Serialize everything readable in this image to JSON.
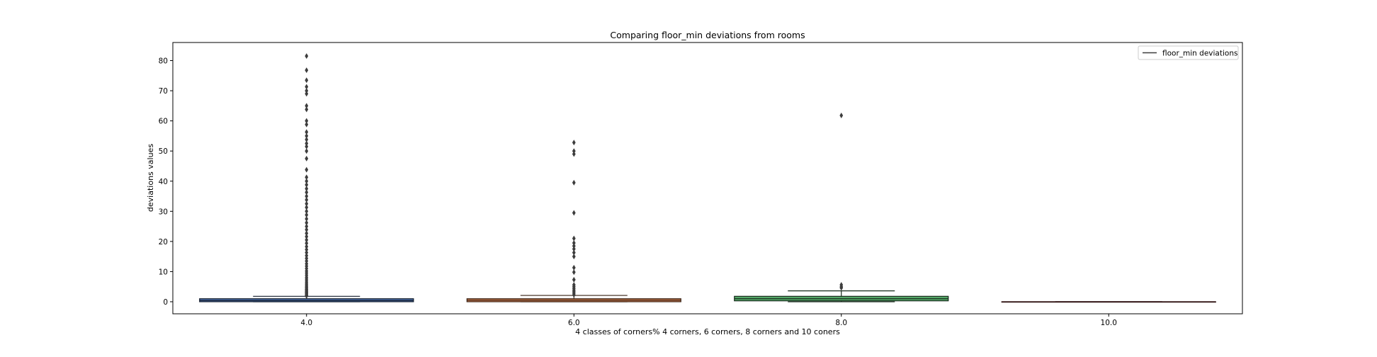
{
  "chart_data": {
    "type": "box",
    "title": "Comparing floor_min deviations from rooms",
    "xlabel": "4 classes of corners% 4 corners, 6 corners, 8 corners and 10 coners",
    "ylabel": "deviations values",
    "ylim": [
      -4,
      86
    ],
    "yticks": [
      0,
      10,
      20,
      30,
      40,
      50,
      60,
      70,
      80
    ],
    "categories": [
      "4.0",
      "6.0",
      "8.0",
      "10.0"
    ],
    "legend": {
      "position": "top-right",
      "label": "floor_min deviations"
    },
    "colors": [
      "#4c72b0",
      "#dd8452",
      "#55a868",
      "#c44e52"
    ],
    "grid": false,
    "boxes": [
      {
        "category": "4.0",
        "q1": 0.0,
        "median": 0.4,
        "q3": 1.0,
        "whisker_low": 0.0,
        "whisker_high": 1.8,
        "outliers": [
          1.9,
          2.1,
          2.3,
          2.6,
          2.9,
          3.2,
          3.5,
          3.8,
          4.1,
          4.5,
          4.9,
          5.3,
          5.8,
          6.3,
          6.9,
          7.5,
          8.1,
          8.8,
          9.5,
          10.2,
          11.0,
          11.8,
          12.6,
          13.5,
          14.4,
          15.3,
          16.3,
          17.3,
          18.3,
          19.4,
          20.5,
          21.6,
          22.7,
          23.9,
          25.0,
          26.2,
          27.5,
          28.8,
          30.0,
          31.3,
          32.5,
          33.8,
          35.0,
          36.3,
          37.5,
          38.8,
          40.0,
          41.3,
          43.8,
          47.5,
          50.0,
          51.5,
          52.5,
          53.8,
          55.0,
          56.3,
          58.8,
          60.0,
          63.8,
          65.0,
          69.0,
          70.0,
          71.3,
          73.5,
          76.8,
          81.5
        ]
      },
      {
        "category": "6.0",
        "q1": 0.0,
        "median": 0.5,
        "q3": 1.0,
        "whisker_low": 0.0,
        "whisker_high": 2.1,
        "outliers": [
          2.3,
          2.8,
          3.3,
          3.8,
          4.4,
          5.0,
          5.6,
          7.3,
          9.8,
          11.3,
          15.0,
          16.3,
          17.5,
          18.5,
          19.5,
          21.0,
          29.5,
          39.5,
          49.0,
          50.0,
          52.8
        ]
      },
      {
        "category": "8.0",
        "q1": 0.3,
        "median": 1.0,
        "q3": 1.8,
        "whisker_low": 0.0,
        "whisker_high": 3.6,
        "outliers": [
          4.6,
          5.0,
          5.6,
          61.8
        ]
      },
      {
        "category": "10.0",
        "q1": 0.0,
        "median": 0.0,
        "q3": 0.0,
        "whisker_low": 0.0,
        "whisker_high": 0.0,
        "outliers": []
      }
    ]
  }
}
